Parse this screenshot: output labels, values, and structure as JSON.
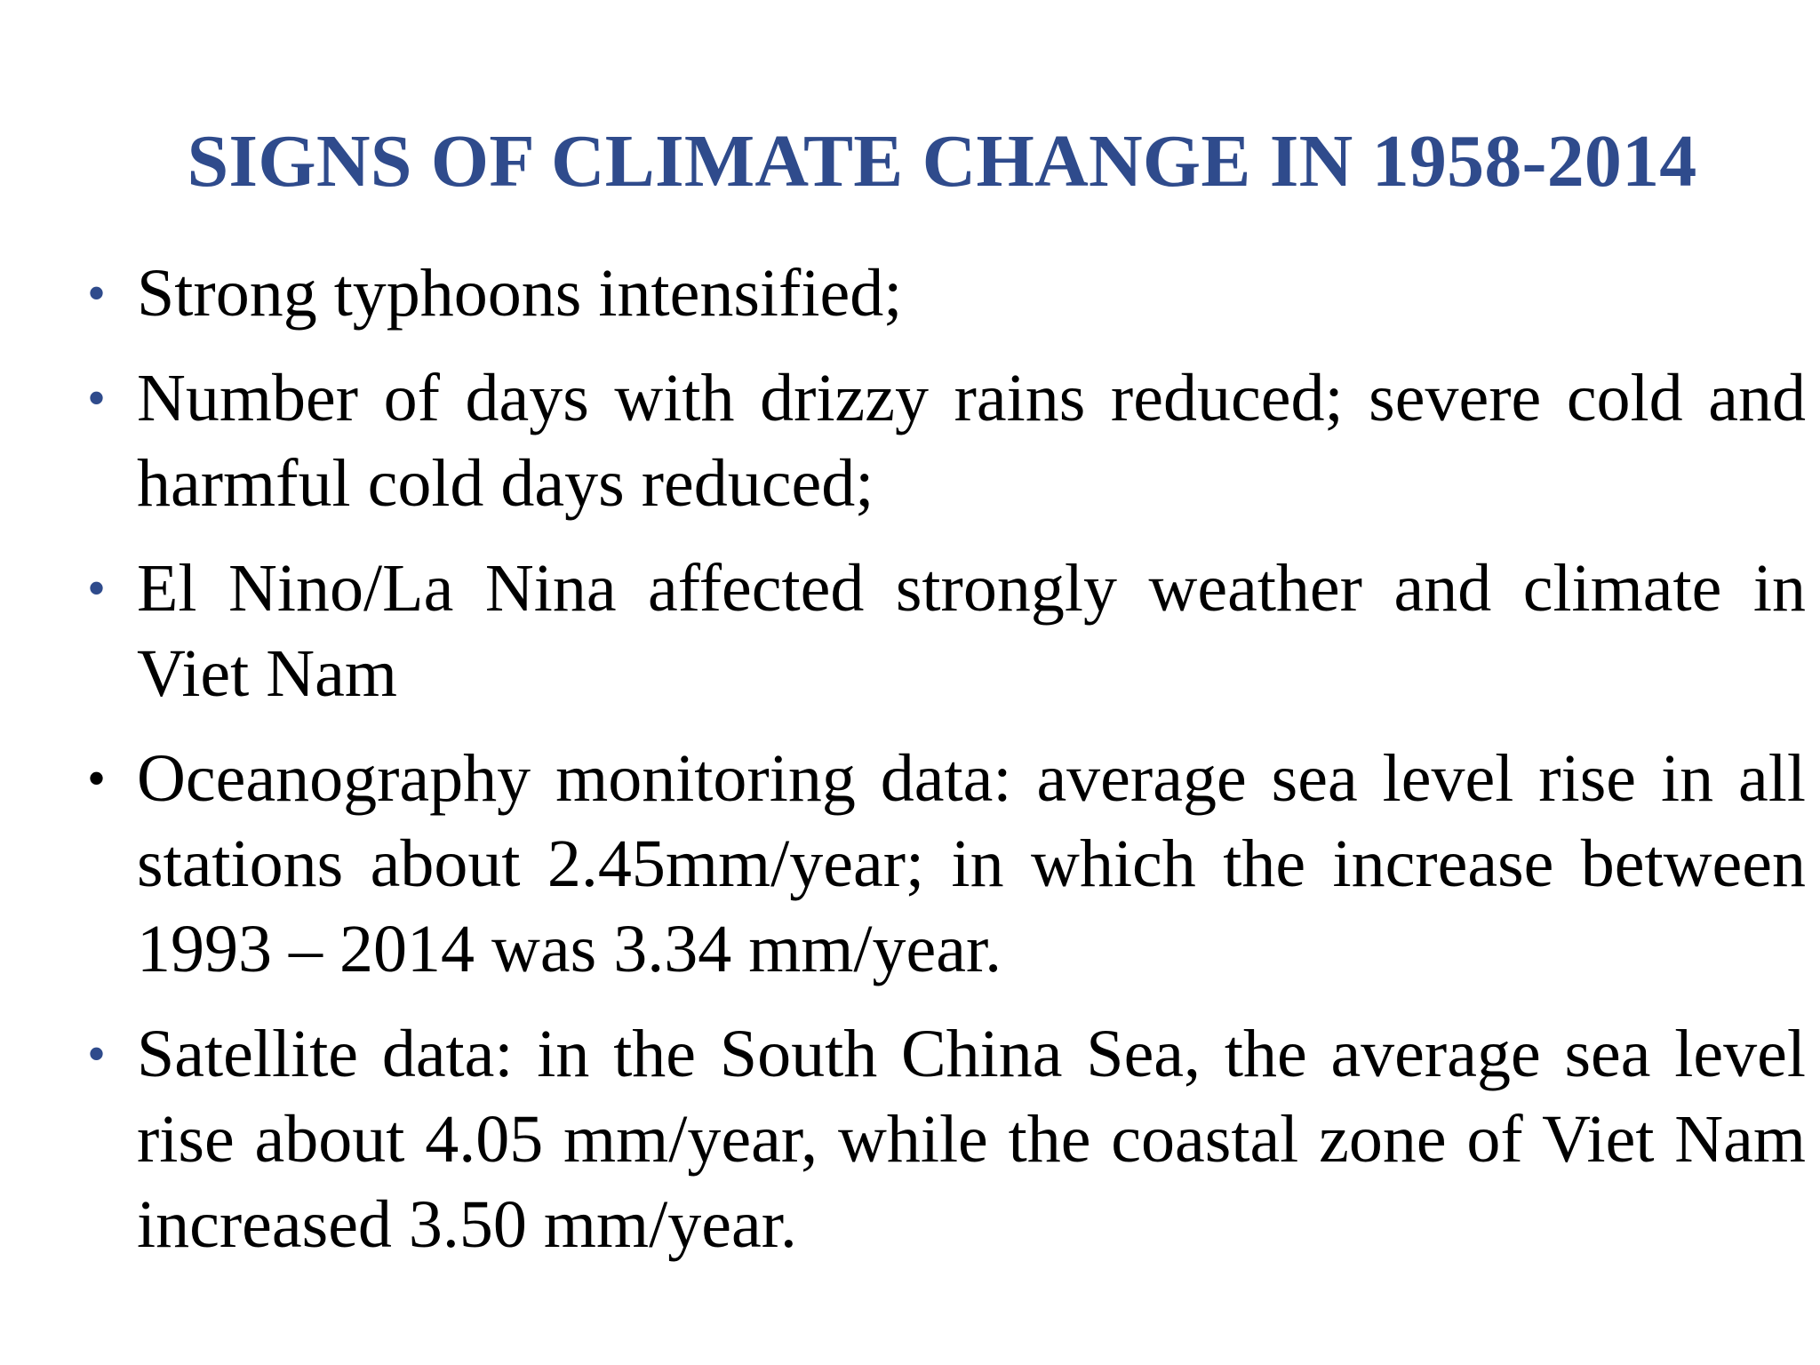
{
  "slide": {
    "title": "SIGNS OF CLIMATE CHANGE IN 1958-2014",
    "bullet_glyph": "•",
    "accent_color": "#2f4b8c",
    "bullets": [
      {
        "text": "Strong typhoons intensified;"
      },
      {
        "text": "Number of days with drizzy rains reduced; severe cold and harmful cold days reduced;"
      },
      {
        "text": "El Nino/La Nina affected strongly weather and climate in Viet Nam"
      },
      {
        "text": "Oceanography monitoring data: average sea level rise in all stations about 2.45mm/year; in which the increase between 1993 – 2014 was 3.34 mm/year."
      },
      {
        "text": "Satellite data: in the South China Sea, the average sea level rise about 4.05 mm/year, while the coastal zone of Viet Nam increased 3.50 mm/year."
      }
    ]
  }
}
